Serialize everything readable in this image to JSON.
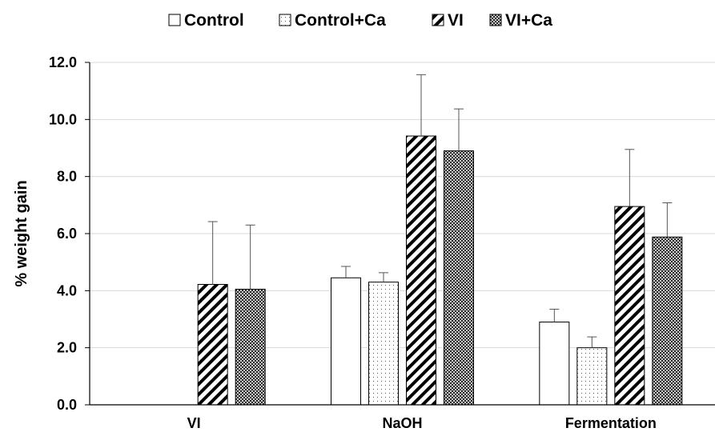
{
  "chart_data": {
    "type": "bar",
    "title": "",
    "xlabel": "",
    "ylabel": "% weight gain",
    "categories": [
      "VI",
      "NaOH",
      "Fermentation"
    ],
    "ylim": [
      0,
      12
    ],
    "y_ticks": [
      "0.0",
      "2.0",
      "4.0",
      "6.0",
      "8.0",
      "10.0",
      "12.0"
    ],
    "grid": true,
    "legend_position": "top",
    "series": [
      {
        "name": "Control",
        "pattern": "plain",
        "values": [
          null,
          4.45,
          2.9
        ],
        "errors": [
          null,
          0.4,
          0.45
        ]
      },
      {
        "name": "Control+Ca",
        "pattern": "dots",
        "values": [
          null,
          4.3,
          2.0
        ],
        "errors": [
          null,
          0.33,
          0.38
        ]
      },
      {
        "name": "VI",
        "pattern": "diagonal",
        "values": [
          4.22,
          9.42,
          6.95
        ],
        "errors": [
          2.2,
          2.15,
          2.0
        ]
      },
      {
        "name": "VI+Ca",
        "pattern": "checker",
        "values": [
          4.05,
          8.9,
          5.88
        ],
        "errors": [
          2.25,
          1.47,
          1.2
        ]
      }
    ]
  }
}
